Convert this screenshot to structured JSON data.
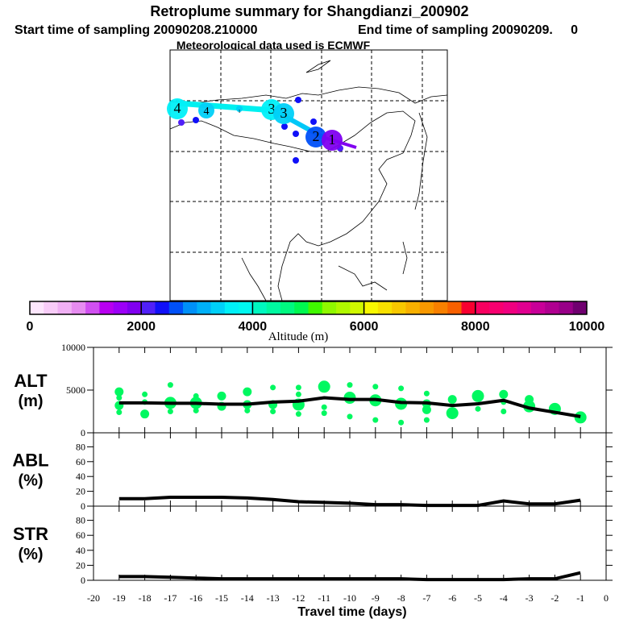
{
  "header": {
    "title": "Retroplume summary for Shangdianzi_200902",
    "subtitle_start": "Start time of sampling 20090208.210000",
    "subtitle_end": "End time of sampling 20090209.     0",
    "met_line": "Meteorological data used is ECMWF"
  },
  "map": {
    "trajectory": [
      {
        "label": "4",
        "alt": 3500,
        "size": 3
      },
      {
        "label": "4",
        "alt": 3400,
        "size": 2
      },
      {
        "label": "1",
        "alt": 3300,
        "size": 0
      },
      {
        "label": "3",
        "alt": 3600,
        "size": 3
      },
      {
        "label": "3",
        "alt": 3300,
        "size": 3
      },
      {
        "label": "2",
        "alt": 2500,
        "size": 3
      },
      {
        "label": "1",
        "alt": 1900,
        "size": 3
      }
    ]
  },
  "colorbar": {
    "label": "Altitude (m)",
    "ticks": [
      "0",
      "2000",
      "4000",
      "6000",
      "8000",
      "10000"
    ],
    "colors": [
      "#fde6fd",
      "#f8ccf8",
      "#f0b0f4",
      "#e68cf0",
      "#d050f0",
      "#b800f0",
      "#9c00f8",
      "#8000f0",
      "#5020f8",
      "#1010f8",
      "#0050f8",
      "#0090f8",
      "#00b0f8",
      "#00d0f8",
      "#00f0f8",
      "#00f8f0",
      "#00f8c0",
      "#00f8a0",
      "#00f880",
      "#00f850",
      "#40f800",
      "#90f800",
      "#b0f800",
      "#d0f800",
      "#f8f800",
      "#f8e000",
      "#f8c800",
      "#f8b000",
      "#f89800",
      "#f88000",
      "#f86000",
      "#f80030",
      "#f80060",
      "#f80070",
      "#f00080",
      "#e00090",
      "#c80098",
      "#b00090",
      "#980088",
      "#700070"
    ]
  },
  "chart_data": [
    {
      "type": "line",
      "panel": "ALT",
      "ylabel": [
        "ALT",
        "(m)"
      ],
      "yticks": [
        "10000",
        "5000",
        "0"
      ],
      "ylim": [
        0,
        10000
      ],
      "x": [
        -19,
        -18,
        -17,
        -16,
        -15,
        -14,
        -13,
        -12,
        -11,
        -10,
        -9,
        -8,
        -7,
        -6,
        -5,
        -4,
        -3,
        -2,
        -1
      ],
      "values": [
        3500,
        3500,
        3450,
        3450,
        3350,
        3350,
        3600,
        3700,
        4100,
        3900,
        3900,
        3550,
        3500,
        3200,
        3400,
        3800,
        2900,
        2400,
        1900
      ],
      "clusters": [
        [
          -19,
          4800,
          2
        ],
        [
          -19,
          4100,
          1
        ],
        [
          -19,
          3200,
          2
        ],
        [
          -19,
          2400,
          1
        ],
        [
          -18,
          4500,
          1
        ],
        [
          -18,
          3600,
          1
        ],
        [
          -18,
          2200,
          2
        ],
        [
          -17,
          5600,
          1
        ],
        [
          -17,
          3500,
          3
        ],
        [
          -17,
          2500,
          1
        ],
        [
          -16,
          4300,
          1
        ],
        [
          -16,
          3500,
          3
        ],
        [
          -16,
          2600,
          1
        ],
        [
          -15,
          4300,
          2
        ],
        [
          -15,
          3100,
          2
        ],
        [
          -14,
          4800,
          2
        ],
        [
          -14,
          3300,
          2
        ],
        [
          -14,
          2600,
          1
        ],
        [
          -13,
          5300,
          1
        ],
        [
          -13,
          3300,
          2
        ],
        [
          -13,
          2500,
          1
        ],
        [
          -12,
          5300,
          1
        ],
        [
          -12,
          4500,
          1
        ],
        [
          -12,
          3300,
          3
        ],
        [
          -12,
          2200,
          1
        ],
        [
          -11,
          5400,
          3
        ],
        [
          -11,
          3000,
          1
        ],
        [
          -11,
          2300,
          1
        ],
        [
          -10,
          5600,
          1
        ],
        [
          -10,
          4100,
          3
        ],
        [
          -10,
          1900,
          1
        ],
        [
          -9,
          5400,
          1
        ],
        [
          -9,
          3800,
          3
        ],
        [
          -9,
          1500,
          1
        ],
        [
          -8,
          5200,
          1
        ],
        [
          -8,
          3400,
          3
        ],
        [
          -8,
          1200,
          1
        ],
        [
          -7,
          4600,
          1
        ],
        [
          -7,
          3400,
          2
        ],
        [
          -7,
          2700,
          2
        ],
        [
          -7,
          1500,
          1
        ],
        [
          -6,
          3900,
          2
        ],
        [
          -6,
          2300,
          3
        ],
        [
          -5,
          4300,
          3
        ],
        [
          -5,
          2800,
          1
        ],
        [
          -4,
          4500,
          2
        ],
        [
          -4,
          3600,
          1
        ],
        [
          -4,
          2500,
          1
        ],
        [
          -3,
          3900,
          2
        ],
        [
          -3,
          3100,
          3
        ],
        [
          -2,
          2800,
          3
        ],
        [
          -1,
          1800,
          3
        ]
      ]
    },
    {
      "type": "line",
      "panel": "ABL",
      "ylabel": [
        "ABL",
        "(%)"
      ],
      "yticks": [
        "80",
        "60",
        "40",
        "20",
        "0"
      ],
      "ylim": [
        0,
        100
      ],
      "x": [
        -19,
        -18,
        -17,
        -16,
        -15,
        -14,
        -13,
        -12,
        -11,
        -10,
        -9,
        -8,
        -7,
        -6,
        -5,
        -4,
        -3,
        -2,
        -1
      ],
      "values": [
        10,
        10,
        12,
        12,
        12,
        11,
        9,
        6,
        5,
        4,
        2,
        2,
        1,
        1,
        1,
        7,
        3,
        3,
        8
      ]
    },
    {
      "type": "line",
      "panel": "STR",
      "ylabel": [
        "STR",
        "(%)"
      ],
      "yticks": [
        "80",
        "60",
        "40",
        "20",
        "0"
      ],
      "ylim": [
        0,
        100
      ],
      "x": [
        -19,
        -18,
        -17,
        -16,
        -15,
        -14,
        -13,
        -12,
        -11,
        -10,
        -9,
        -8,
        -7,
        -6,
        -5,
        -4,
        -3,
        -2,
        -1
      ],
      "values": [
        5,
        5,
        4,
        3,
        2,
        2,
        2,
        2,
        2,
        2,
        2,
        2,
        1,
        1,
        1,
        1,
        2,
        2,
        10
      ],
      "xlabel": "Travel time (days)",
      "xticks": [
        "-20",
        "-19",
        "-18",
        "-17",
        "-16",
        "-15",
        "-14",
        "-13",
        "-12",
        "-11",
        "-10",
        "-9",
        "-8",
        "-7",
        "-6",
        "-5",
        "-4",
        "-3",
        "-2",
        "-1",
        "0"
      ],
      "xlim": [
        -20,
        0
      ]
    }
  ]
}
